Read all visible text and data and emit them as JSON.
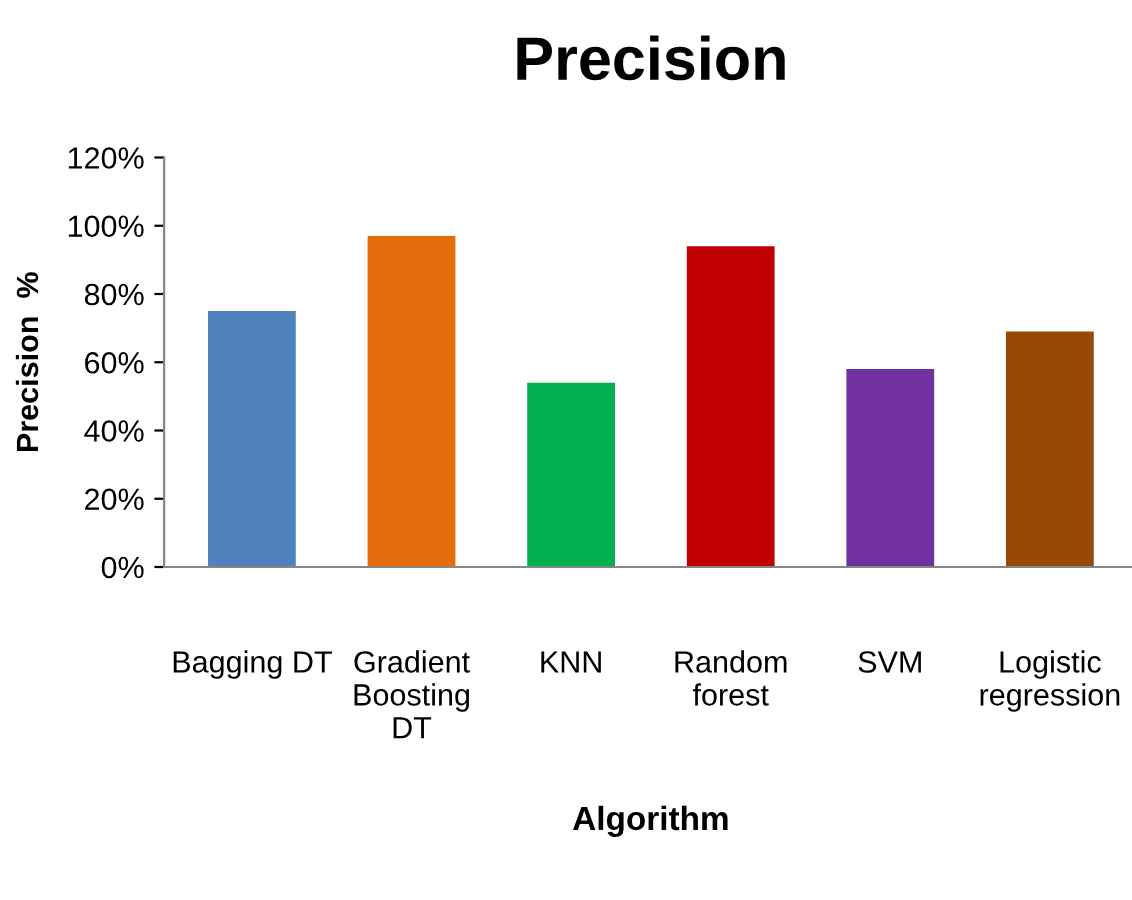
{
  "chart_data": {
    "type": "bar",
    "title": "Precision",
    "xlabel": "Algorithm",
    "ylabel": "Precision  %",
    "categories": [
      "Bagging DT",
      "Gradient\nBoosting\nDT",
      "KNN",
      "Random\nforest",
      "SVM",
      "Logistic\nregression"
    ],
    "values": [
      75,
      97,
      54,
      94,
      58,
      69
    ],
    "colors": [
      "#4f81bd",
      "#e46c0a",
      "#00b050",
      "#c00000",
      "#7030a0",
      "#984807"
    ],
    "ylim": [
      0,
      120
    ],
    "yticks": [
      {
        "value": 0,
        "label": "0%"
      },
      {
        "value": 20,
        "label": "20%"
      },
      {
        "value": 40,
        "label": "40%"
      },
      {
        "value": 60,
        "label": "60%"
      },
      {
        "value": 80,
        "label": "80%"
      },
      {
        "value": 100,
        "label": "100%"
      },
      {
        "value": 120,
        "label": "120%"
      }
    ],
    "grid": false,
    "legend": false
  }
}
